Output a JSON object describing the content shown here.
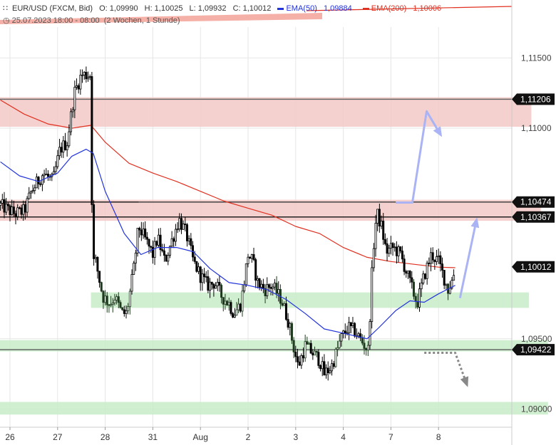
{
  "header": {
    "symbol": "EUR/USD (FXCM, Bid)",
    "open": "O: 1,09990",
    "high": "H: 1,10025",
    "low": "L: 1,09932",
    "close": "C: 1,10012",
    "ema50_label": "EMA(50)",
    "ema50_value": "1,09884",
    "ema200_label": "EMA(200)",
    "ema200_value": "1,10006",
    "range": "25.07.2023 18:00 - 08:00",
    "interval": "(2 Wochen, 1 Stunde)"
  },
  "colors": {
    "candle": "#000000",
    "candle_green_zone": "#1e3a1e",
    "ema50": "#2233dd",
    "ema200": "#e03020",
    "resistance_zone": "#f2c9c6",
    "support_zone": "#c8ecc8",
    "arrow_up": "#aab4f5",
    "arrow_down": "#888888",
    "level_line": "#555555",
    "grid": "#e6e6e6"
  },
  "chart_data": {
    "type": "candlestick",
    "ylim": [
      1.0887,
      1.1172
    ],
    "y_ticks": [
      "1,11500",
      "1,11000",
      "1,09500",
      "1,09000"
    ],
    "x_ticks": [
      "26",
      "27",
      "28",
      "31",
      "Aug",
      "2",
      "3",
      "4",
      "7",
      "8"
    ],
    "x_tick_days": [
      0,
      1,
      2,
      3,
      4,
      5,
      6,
      7,
      8,
      9
    ],
    "level_lines": [
      {
        "value": 1.11206,
        "label": "1,11206"
      },
      {
        "value": 1.10474,
        "label": "1,10474"
      },
      {
        "value": 1.10367,
        "label": "1,10367"
      },
      {
        "value": 1.10012,
        "label": "1,10012"
      },
      {
        "value": 1.09422,
        "label": "1,09422"
      }
    ],
    "zones": [
      {
        "kind": "resistance",
        "from": 1.1101,
        "to": 1.1122,
        "x_end": 10.95
      },
      {
        "kind": "resistance",
        "from": 1.1034,
        "to": 1.1049,
        "x_end": 11.15
      },
      {
        "kind": "support",
        "from": 1.0972,
        "to": 1.0983,
        "x_start": 1.7,
        "x_end": 10.9
      },
      {
        "kind": "support",
        "from": 1.0941,
        "to": 1.0949,
        "x_end": 11.3
      },
      {
        "kind": "support",
        "from": 1.0896,
        "to": 1.0905,
        "x_end": 11.3
      }
    ],
    "close_path": [
      [
        -0.2,
        1.1045
      ],
      [
        0.1,
        1.1039
      ],
      [
        0.3,
        1.1041
      ],
      [
        0.45,
        1.1055
      ],
      [
        0.7,
        1.1068
      ],
      [
        0.9,
        1.1062
      ],
      [
        1.05,
        1.1085
      ],
      [
        1.2,
        1.109
      ],
      [
        1.35,
        1.1125
      ],
      [
        1.5,
        1.1138
      ],
      [
        1.7,
        1.1138
      ],
      [
        1.73,
        1.1005
      ],
      [
        1.8,
        1.1005
      ],
      [
        1.95,
        1.098
      ],
      [
        2.1,
        1.0975
      ],
      [
        2.2,
        1.098
      ],
      [
        2.35,
        1.0968
      ],
      [
        2.45,
        1.0968
      ],
      [
        2.6,
        1.1
      ],
      [
        2.7,
        1.103
      ],
      [
        2.85,
        1.102
      ],
      [
        3.0,
        1.101
      ],
      [
        3.1,
        1.1022
      ],
      [
        3.25,
        1.1005
      ],
      [
        3.4,
        1.102
      ],
      [
        3.55,
        1.1035
      ],
      [
        3.7,
        1.1025
      ],
      [
        3.85,
        1.1005
      ],
      [
        4.0,
        1.0995
      ],
      [
        4.15,
        1.0988
      ],
      [
        4.3,
        1.099
      ],
      [
        4.45,
        1.098
      ],
      [
        4.6,
        1.0975
      ],
      [
        4.7,
        1.0968
      ],
      [
        4.85,
        1.0975
      ],
      [
        5.0,
        1.101
      ],
      [
        5.1,
        1.1005
      ],
      [
        5.2,
        1.099
      ],
      [
        5.35,
        1.0985
      ],
      [
        5.5,
        1.0988
      ],
      [
        5.7,
        1.0978
      ],
      [
        5.85,
        1.0962
      ],
      [
        5.95,
        1.0945
      ],
      [
        6.05,
        1.093
      ],
      [
        6.2,
        1.0945
      ],
      [
        6.35,
        1.094
      ],
      [
        6.5,
        1.0935
      ],
      [
        6.6,
        1.0925
      ],
      [
        6.75,
        1.093
      ],
      [
        6.85,
        1.094
      ],
      [
        6.95,
        1.095
      ],
      [
        7.1,
        1.0958
      ],
      [
        7.25,
        1.0955
      ],
      [
        7.35,
        1.095
      ],
      [
        7.45,
        1.0945
      ],
      [
        7.52,
        1.0942
      ],
      [
        7.55,
        1.096
      ],
      [
        7.62,
        1.101
      ],
      [
        7.7,
        1.104
      ],
      [
        7.8,
        1.103
      ],
      [
        7.9,
        1.1012
      ],
      [
        8.05,
        1.1015
      ],
      [
        8.2,
        1.101
      ],
      [
        8.3,
        1.1
      ],
      [
        8.45,
        1.0985
      ],
      [
        8.55,
        1.0975
      ],
      [
        8.7,
        1.0995
      ],
      [
        8.85,
        1.101
      ],
      [
        9.0,
        1.1005
      ],
      [
        9.1,
        1.0995
      ],
      [
        9.2,
        1.0985
      ],
      [
        9.3,
        1.0993
      ],
      [
        9.35,
        1.1001
      ]
    ],
    "ema50": [
      [
        -0.2,
        1.1076
      ],
      [
        0.2,
        1.1066
      ],
      [
        0.6,
        1.1062
      ],
      [
        1.0,
        1.1068
      ],
      [
        1.3,
        1.108
      ],
      [
        1.6,
        1.1085
      ],
      [
        1.75,
        1.1082
      ],
      [
        2.0,
        1.1055
      ],
      [
        2.4,
        1.1025
      ],
      [
        2.75,
        1.101
      ],
      [
        3.1,
        1.1015
      ],
      [
        3.5,
        1.1015
      ],
      [
        3.85,
        1.1012
      ],
      [
        4.2,
        1.1
      ],
      [
        4.6,
        1.099
      ],
      [
        5.0,
        1.0988
      ],
      [
        5.4,
        1.0985
      ],
      [
        5.8,
        1.0978
      ],
      [
        6.2,
        1.0968
      ],
      [
        6.6,
        1.0957
      ],
      [
        7.0,
        1.0954
      ],
      [
        7.5,
        1.095
      ],
      [
        7.75,
        1.0958
      ],
      [
        8.1,
        1.097
      ],
      [
        8.4,
        1.0977
      ],
      [
        8.7,
        1.0976
      ],
      [
        9.0,
        1.0982
      ],
      [
        9.35,
        1.0988
      ]
    ],
    "ema200": [
      [
        -0.2,
        1.112
      ],
      [
        0.3,
        1.111
      ],
      [
        0.8,
        1.1103
      ],
      [
        1.3,
        1.11
      ],
      [
        1.7,
        1.1102
      ],
      [
        2.0,
        1.109
      ],
      [
        2.5,
        1.1075
      ],
      [
        3.0,
        1.1068
      ],
      [
        3.5,
        1.1062
      ],
      [
        4.0,
        1.1055
      ],
      [
        4.5,
        1.1048
      ],
      [
        5.0,
        1.1043
      ],
      [
        5.5,
        1.1038
      ],
      [
        6.0,
        1.103
      ],
      [
        6.5,
        1.1025
      ],
      [
        7.0,
        1.1015
      ],
      [
        7.5,
        1.1008
      ],
      [
        8.0,
        1.1005
      ],
      [
        8.5,
        1.1003
      ],
      [
        9.0,
        1.1001
      ],
      [
        9.35,
        1.10006
      ]
    ],
    "arrows": [
      {
        "kind": "up",
        "points": [
          [
            8.1,
            1.1047
          ],
          [
            8.45,
            1.1047
          ],
          [
            8.75,
            1.1112
          ],
          [
            9.05,
            1.1095
          ]
        ]
      },
      {
        "kind": "up",
        "points": [
          [
            9.45,
            1.0979
          ],
          [
            9.8,
            1.1035
          ]
        ]
      },
      {
        "kind": "down",
        "points": [
          [
            8.7,
            1.094
          ],
          [
            9.35,
            1.094
          ],
          [
            9.6,
            1.0917
          ]
        ]
      }
    ]
  }
}
